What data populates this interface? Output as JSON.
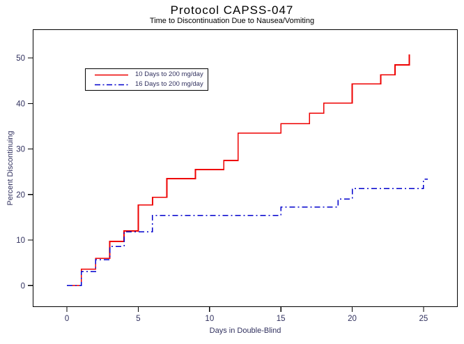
{
  "colors": {
    "background": "#ffffff",
    "frame": "#000000",
    "title_text": "#000000",
    "axis_text": "#30305e",
    "series_red": "#ee0000",
    "series_blue": "#0000cc"
  },
  "chart_data": {
    "type": "line",
    "subtype": "step-survival",
    "title": "Protocol CAPSS-047",
    "subtitle": "Time to Discontinuation Due to Nausea/Vomiting",
    "xlabel": "Days in Double-Blind",
    "ylabel": "Percent Discontinuing",
    "xlim": [
      -2.4,
      27.4
    ],
    "ylim": [
      -4.7,
      56.3
    ],
    "xticks": [
      0,
      5,
      10,
      15,
      20,
      25
    ],
    "yticks": [
      0,
      10,
      20,
      30,
      40,
      50
    ],
    "grid": false,
    "legend_position": "upper-left-inside",
    "series": [
      {
        "name": "10 Days to 200 mg/day",
        "color": "#ee0000",
        "line_style": "solid",
        "terminal_dash": false,
        "points": [
          [
            0,
            0
          ],
          [
            1,
            3.6
          ],
          [
            2,
            6.0
          ],
          [
            3,
            9.7
          ],
          [
            4,
            12.0
          ],
          [
            5,
            17.7
          ],
          [
            6,
            19.4
          ],
          [
            7,
            23.5
          ],
          [
            9,
            25.5
          ],
          [
            11,
            27.5
          ],
          [
            12,
            33.5
          ],
          [
            15,
            35.6
          ],
          [
            17,
            37.9
          ],
          [
            18,
            40.1
          ],
          [
            20,
            44.3
          ],
          [
            22,
            46.3
          ],
          [
            23,
            48.5
          ],
          [
            24,
            50.8
          ]
        ]
      },
      {
        "name": "16 Days to 200 mg/day",
        "color": "#0000cc",
        "line_style": "dash-dot",
        "terminal_dash": true,
        "points": [
          [
            0,
            0
          ],
          [
            1,
            3.1
          ],
          [
            2,
            5.7
          ],
          [
            3,
            8.6
          ],
          [
            4,
            11.8
          ],
          [
            6,
            15.4
          ],
          [
            15,
            17.3
          ],
          [
            19,
            19.0
          ],
          [
            20,
            21.3
          ],
          [
            25,
            23.4
          ]
        ]
      }
    ]
  }
}
